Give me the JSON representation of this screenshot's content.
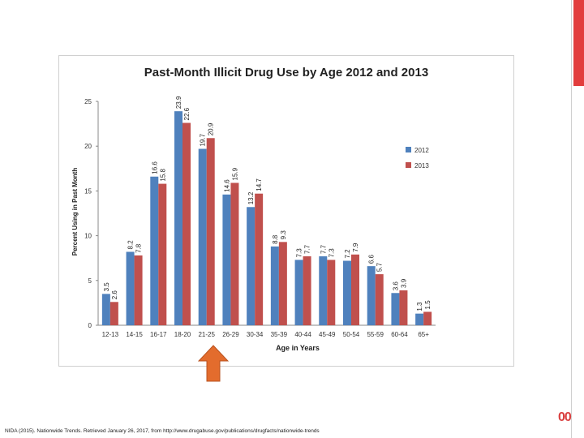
{
  "chart_data": {
    "type": "bar",
    "title": "Past-Month Illicit Drug Use by Age 2012 and 2013",
    "xlabel": "Age in Years",
    "ylabel": "Percent Using in Past Month",
    "ylim": [
      0,
      25
    ],
    "yticks": [
      0,
      5,
      10,
      15,
      20,
      25
    ],
    "categories": [
      "12-13",
      "14-15",
      "16-17",
      "18-20",
      "21-25",
      "26-29",
      "30-34",
      "35-39",
      "40-44",
      "45-49",
      "50-54",
      "55-59",
      "60-64",
      "65+"
    ],
    "series": [
      {
        "name": "2012",
        "color": "#4f81bd",
        "values": [
          3.5,
          8.2,
          16.6,
          23.9,
          19.7,
          14.6,
          13.2,
          8.8,
          7.3,
          7.7,
          7.2,
          6.6,
          3.6,
          1.3
        ]
      },
      {
        "name": "2013",
        "color": "#c0504d",
        "values": [
          2.6,
          7.8,
          15.8,
          22.6,
          20.9,
          15.9,
          14.7,
          9.3,
          7.7,
          7.3,
          7.9,
          5.7,
          3.9,
          1.5
        ]
      }
    ],
    "legend_position": "right",
    "grid": false
  },
  "slide": {
    "slide_number": "00",
    "citation": "NIDA (2015). Nationwide Trends. Retrieved January 26, 2017, from http://www.drugabuse.gov/publications/drugfacts/nationwide-trends",
    "arrow_color": "#e36c2d",
    "accent_color": "#e23d3d"
  }
}
